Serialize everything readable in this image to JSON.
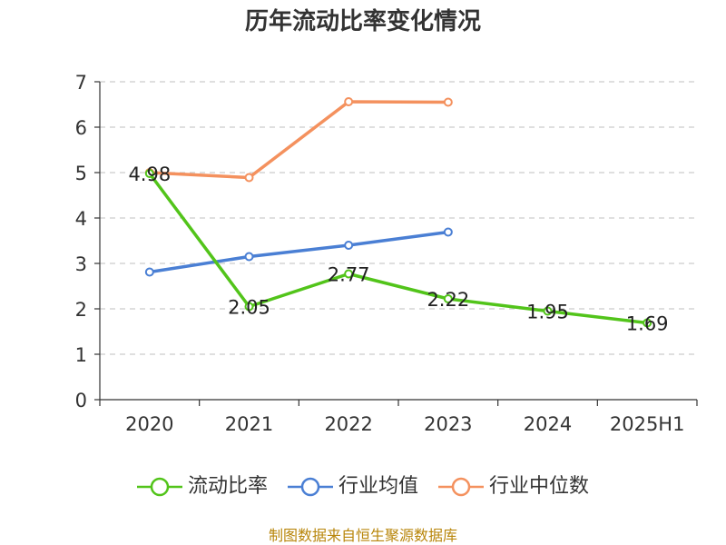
{
  "chart_data": {
    "type": "line",
    "title": "历年流动比率变化情况",
    "categories": [
      "2020",
      "2021",
      "2022",
      "2023",
      "2024",
      "2025H1"
    ],
    "ylim": [
      0,
      7
    ],
    "yticks": [
      0,
      1,
      2,
      3,
      4,
      5,
      6,
      7
    ],
    "grid": true,
    "legend_position": "bottom",
    "series": [
      {
        "name": "流动比率",
        "color": "#52c41a",
        "values": [
          4.98,
          2.05,
          2.77,
          2.22,
          1.95,
          1.69
        ],
        "labels": [
          "4.98",
          "2.05",
          "2.77",
          "2.22",
          "1.95",
          "1.69"
        ]
      },
      {
        "name": "行业均值",
        "color": "#4a7fd4",
        "values": [
          2.81,
          3.15,
          3.4,
          3.69,
          null,
          null
        ]
      },
      {
        "name": "行业中位数",
        "color": "#f4915e",
        "values": [
          5.0,
          4.89,
          6.56,
          6.55,
          null,
          null
        ]
      }
    ]
  },
  "source": "制图数据来自恒生聚源数据库"
}
